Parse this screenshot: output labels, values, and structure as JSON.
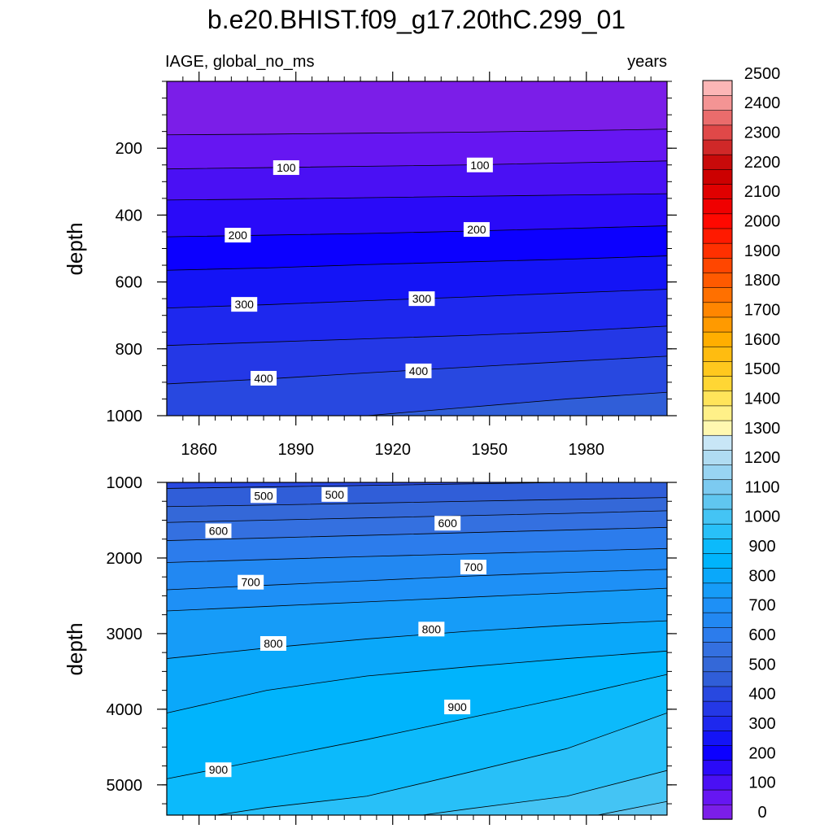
{
  "chart_data": {
    "type": "heatmap",
    "title": "b.e20.BHIST.f09_g17.20thC.299_01",
    "left_label": "IAGE, global_no_ms",
    "right_label": "years",
    "ylabel": "depth",
    "x_ticks": [
      1860,
      1890,
      1920,
      1950,
      1980
    ],
    "xlim": [
      1850,
      2005
    ],
    "panels": [
      {
        "ylim": [
          0,
          1000
        ],
        "y_ticks": [
          200,
          400,
          600,
          800,
          1000
        ],
        "contour_levels": [
          50,
          100,
          150,
          200,
          250,
          300,
          350,
          400,
          450
        ],
        "contours": [
          {
            "level": 50,
            "depth": [
              160,
              158,
              155,
              152,
              148,
              143
            ]
          },
          {
            "level": 100,
            "depth": [
              262,
              258,
              254,
              250,
              244,
              238
            ]
          },
          {
            "level": 150,
            "depth": [
              355,
              352,
              348,
              344,
              340,
              336
            ]
          },
          {
            "level": 200,
            "depth": [
              465,
              460,
              455,
              448,
              440,
              432
            ]
          },
          {
            "level": 250,
            "depth": [
              565,
              558,
              548,
              540,
              532,
              522
            ]
          },
          {
            "level": 300,
            "depth": [
              678,
              668,
              656,
              645,
              633,
              622
            ]
          },
          {
            "level": 350,
            "depth": [
              790,
              780,
              770,
              760,
              748,
              732
            ]
          },
          {
            "level": 400,
            "depth": [
              905,
              890,
              872,
              855,
              838,
              822
            ]
          },
          {
            "level": 450,
            "depth": [
              1010,
              1005,
              1000,
              975,
              950,
              930
            ]
          }
        ],
        "labels": [
          {
            "text": "100",
            "x": 1887,
            "depth": 258
          },
          {
            "text": "100",
            "x": 1947,
            "depth": 250
          },
          {
            "text": "200",
            "x": 1872,
            "depth": 460
          },
          {
            "text": "200",
            "x": 1946,
            "depth": 443
          },
          {
            "text": "300",
            "x": 1874,
            "depth": 667
          },
          {
            "text": "300",
            "x": 1929,
            "depth": 650
          },
          {
            "text": "400",
            "x": 1880,
            "depth": 888
          },
          {
            "text": "400",
            "x": 1928,
            "depth": 866
          }
        ]
      },
      {
        "ylim": [
          1000,
          5400
        ],
        "y_ticks": [
          1000,
          2000,
          3000,
          4000,
          5000
        ],
        "contour_levels": [
          450,
          500,
          550,
          600,
          650,
          700,
          750,
          800,
          850,
          900,
          950,
          1000,
          1050
        ],
        "contours": [
          {
            "level": 450,
            "depth": [
              1080,
              1060,
              1040,
              1020,
              1000,
              1000
            ]
          },
          {
            "level": 500,
            "depth": [
              1320,
              1300,
              1275,
              1250,
              1225,
              1200
            ]
          },
          {
            "level": 550,
            "depth": [
              1530,
              1500,
              1470,
              1440,
              1410,
              1375
            ]
          },
          {
            "level": 600,
            "depth": [
              1770,
              1735,
              1700,
              1665,
              1630,
              1595
            ]
          },
          {
            "level": 650,
            "depth": [
              2060,
              2020,
              1980,
              1945,
              1910,
              1875
            ]
          },
          {
            "level": 700,
            "depth": [
              2420,
              2360,
              2300,
              2240,
              2190,
              2150
            ]
          },
          {
            "level": 750,
            "depth": [
              2700,
              2640,
              2580,
              2520,
              2460,
              2400
            ]
          },
          {
            "level": 800,
            "depth": [
              3330,
              3190,
              3070,
              2970,
              2890,
              2830
            ]
          },
          {
            "level": 850,
            "depth": [
              4050,
              3750,
              3560,
              3440,
              3330,
              3230
            ]
          },
          {
            "level": 900,
            "depth": [
              4920,
              4660,
              4400,
              4120,
              3840,
              3540
            ]
          },
          {
            "level": 950,
            "depth": [
              5500,
              5300,
              5150,
              4840,
              4520,
              4050
            ]
          },
          {
            "level": 1000,
            "depth": [
              5500,
              5500,
              5500,
              5320,
              5150,
              4810
            ]
          },
          {
            "level": 1050,
            "depth": [
              5500,
              5500,
              5500,
              5500,
              5480,
              5220
            ]
          }
        ],
        "labels": [
          {
            "text": "500",
            "x": 1880,
            "depth": 1175
          },
          {
            "text": "500",
            "x": 1902,
            "depth": 1160
          },
          {
            "text": "600",
            "x": 1866,
            "depth": 1640
          },
          {
            "text": "600",
            "x": 1937,
            "depth": 1540
          },
          {
            "text": "700",
            "x": 1876,
            "depth": 2320
          },
          {
            "text": "700",
            "x": 1945,
            "depth": 2120
          },
          {
            "text": "800",
            "x": 1883,
            "depth": 3130
          },
          {
            "text": "800",
            "x": 1932,
            "depth": 2940
          },
          {
            "text": "900",
            "x": 1866,
            "depth": 4800
          },
          {
            "text": "900",
            "x": 1940,
            "depth": 3970
          }
        ]
      }
    ],
    "colorbar": {
      "labels": [
        "0",
        "100",
        "200",
        "300",
        "400",
        "500",
        "600",
        "700",
        "800",
        "900",
        "1000",
        "1100",
        "1200",
        "1300",
        "1400",
        "1500",
        "1600",
        "1700",
        "1800",
        "1900",
        "2000",
        "2100",
        "2200",
        "2300",
        "2400",
        "2500"
      ],
      "interval": 50,
      "colors": [
        "#7b1ee8",
        "#6616f2",
        "#4a10f4",
        "#2a0af8",
        "#0c00ff",
        "#1414f6",
        "#1e28ee",
        "#2438e6",
        "#2848e0",
        "#305ed8",
        "#3468d8",
        "#3470e0",
        "#2c7cec",
        "#2288f2",
        "#1e90f6",
        "#169cf8",
        "#0aa8fa",
        "#00b4fc",
        "#0cbafb",
        "#28c0f8",
        "#44c4f4",
        "#60c6f0",
        "#7ccaf0",
        "#98d4f2",
        "#b0dcf2",
        "#c8e6f6",
        "#fff8b0",
        "#fff088",
        "#ffe45a",
        "#ffd634",
        "#ffc81e",
        "#ffbc10",
        "#ffae00",
        "#ff9a00",
        "#ff8600",
        "#ff7000",
        "#ff5a00",
        "#ff4600",
        "#ff3000",
        "#ff1a00",
        "#ff0800",
        "#f00000",
        "#e00000",
        "#cc0000",
        "#c80a0a",
        "#d02828",
        "#e04848",
        "#ea6c6c",
        "#f49494",
        "#fcb6b6"
      ]
    }
  }
}
